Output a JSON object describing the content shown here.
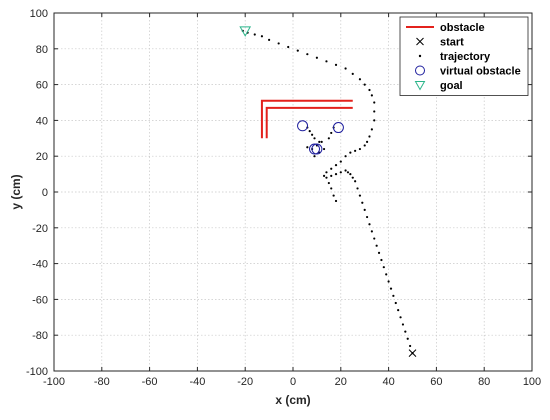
{
  "chart_data": {
    "type": "scatter",
    "xlabel": "x (cm)",
    "ylabel": "y (cm)",
    "xlim": [
      -100,
      100
    ],
    "ylim": [
      -100,
      100
    ],
    "xticks": [
      "-100",
      "-80",
      "-60",
      "-40",
      "-20",
      "0",
      "20",
      "40",
      "60",
      "80",
      "100"
    ],
    "yticks": [
      "100",
      "80",
      "60",
      "40",
      "20",
      "0",
      "-20",
      "-40",
      "-60",
      "-80",
      "-100"
    ],
    "xtick_values": [
      -100,
      -80,
      -60,
      -40,
      -20,
      0,
      20,
      40,
      60,
      80,
      100
    ],
    "ytick_values": [
      100,
      80,
      60,
      40,
      20,
      0,
      -20,
      -40,
      -60,
      -80,
      -100
    ],
    "grid": true,
    "legend_position": "top-right",
    "legend": [
      {
        "label": "obstacle",
        "marker": "line",
        "color": "#e3211c"
      },
      {
        "label": "start",
        "marker": "x",
        "color": "#000000"
      },
      {
        "label": "trajectory",
        "marker": "dot",
        "color": "#000000"
      },
      {
        "label": "virtual obstacle",
        "marker": "circle",
        "color": "#1f1f9e"
      },
      {
        "label": "goal",
        "marker": "triangle-down",
        "color": "#2bb58a"
      }
    ],
    "series": [
      {
        "name": "obstacle",
        "lines": [
          [
            [
              -11,
              30
            ],
            [
              -11,
              47
            ],
            [
              25,
              47
            ]
          ],
          [
            [
              -13,
              30
            ],
            [
              -13,
              51
            ],
            [
              25,
              51
            ]
          ]
        ]
      },
      {
        "name": "start",
        "points": [
          [
            50,
            -90
          ]
        ]
      },
      {
        "name": "trajectory",
        "points": [
          [
            50,
            -90
          ],
          [
            49,
            -86
          ],
          [
            48,
            -82
          ],
          [
            47,
            -78
          ],
          [
            46,
            -74
          ],
          [
            45,
            -70
          ],
          [
            44,
            -66
          ],
          [
            43,
            -62
          ],
          [
            42,
            -58
          ],
          [
            41,
            -54
          ],
          [
            40,
            -50
          ],
          [
            39,
            -46
          ],
          [
            38,
            -42
          ],
          [
            37,
            -38
          ],
          [
            36,
            -34
          ],
          [
            35,
            -30
          ],
          [
            34,
            -26
          ],
          [
            33,
            -22
          ],
          [
            32,
            -18
          ],
          [
            31,
            -14
          ],
          [
            30,
            -10
          ],
          [
            29,
            -6
          ],
          [
            28,
            -2
          ],
          [
            27,
            2
          ],
          [
            26,
            6
          ],
          [
            25,
            8
          ],
          [
            24,
            10
          ],
          [
            23,
            11
          ],
          [
            22,
            12
          ],
          [
            20,
            11
          ],
          [
            18,
            10
          ],
          [
            16,
            9
          ],
          [
            14,
            8
          ],
          [
            13,
            9
          ],
          [
            14,
            11
          ],
          [
            16,
            13
          ],
          [
            18,
            15
          ],
          [
            20,
            17
          ],
          [
            22,
            20
          ],
          [
            24,
            22
          ],
          [
            26,
            23
          ],
          [
            28,
            24
          ],
          [
            30,
            26
          ],
          [
            31,
            28
          ],
          [
            32,
            31
          ],
          [
            33,
            35
          ],
          [
            34,
            40
          ],
          [
            34,
            45
          ],
          [
            34,
            50
          ],
          [
            33,
            54
          ],
          [
            32,
            57
          ],
          [
            30,
            60
          ],
          [
            28,
            63
          ],
          [
            25,
            66
          ],
          [
            22,
            69
          ],
          [
            18,
            71
          ],
          [
            14,
            73
          ],
          [
            10,
            75
          ],
          [
            6,
            77
          ],
          [
            2,
            79
          ],
          [
            -2,
            81
          ],
          [
            -6,
            83
          ],
          [
            -10,
            85
          ],
          [
            -13,
            87
          ],
          [
            -16,
            88
          ],
          [
            -19,
            89
          ],
          [
            -21,
            90
          ],
          [
            15,
            5
          ],
          [
            16,
            2
          ],
          [
            17,
            -2
          ],
          [
            18,
            -5
          ],
          [
            9,
            20
          ],
          [
            11,
            22
          ],
          [
            13,
            24
          ],
          [
            6,
            25
          ],
          [
            8,
            24
          ],
          [
            10,
            26
          ],
          [
            12,
            28
          ],
          [
            6,
            36
          ],
          [
            7,
            34
          ],
          [
            8,
            32
          ],
          [
            9,
            30
          ],
          [
            11,
            28
          ],
          [
            17,
            36
          ],
          [
            16,
            33
          ],
          [
            15,
            30
          ]
        ]
      },
      {
        "name": "virtual obstacle",
        "points": [
          [
            4,
            37
          ],
          [
            19,
            36
          ],
          [
            9,
            24
          ],
          [
            10,
            24
          ]
        ]
      },
      {
        "name": "goal",
        "points": [
          [
            -20,
            90
          ]
        ]
      }
    ]
  }
}
